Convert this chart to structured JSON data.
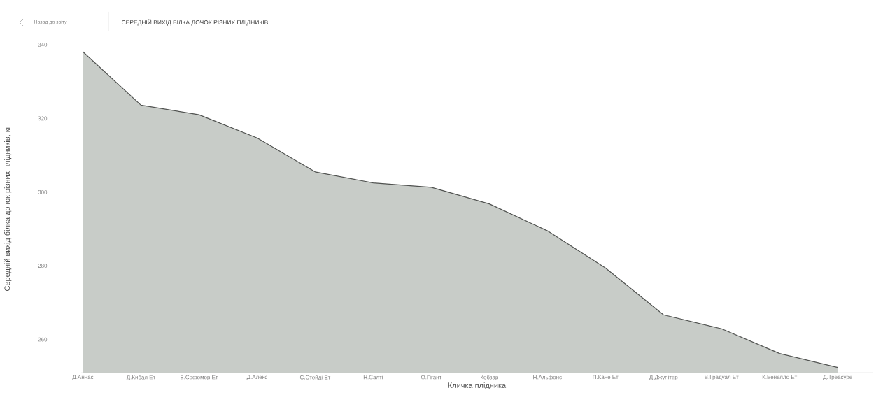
{
  "chart_data": {
    "type": "area",
    "title": "СЕРЕДНІЙ ВИХІД БІЛКА ДОЧОК РІЗНИХ ПЛІДНИКІВ",
    "xlabel": "Кличка плідника",
    "ylabel": "Середній вихід білка дочок різних плідників, кг",
    "annotations": [
      "Назад до звіту"
    ],
    "categories": [
      "Д.Аннас",
      "Д.Кибал Ет",
      "В.Софомор Ет",
      "Д.Алекс",
      "С.Стейді Ет",
      "Н.Салті",
      "О.Гігант",
      "Кобзар",
      "Н.Альфонс",
      "П.Кане Ет",
      "Д.Джупітер",
      "В.Градуал Ет",
      "К.Бенелло Ет",
      "Д.Треасуре"
    ],
    "series": [
      {
        "color": "#c8ccc8",
        "values": [
          338.1,
          323.6,
          321,
          314.7,
          305.5,
          302.5,
          301.3,
          296.8,
          289.5,
          279.4,
          266.7,
          262.9,
          256.2,
          252.4
        ]
      }
    ],
    "ylim": [
      251,
      340
    ],
    "yticks": [
      260,
      280,
      300,
      320,
      340
    ],
    "grid": false
  }
}
